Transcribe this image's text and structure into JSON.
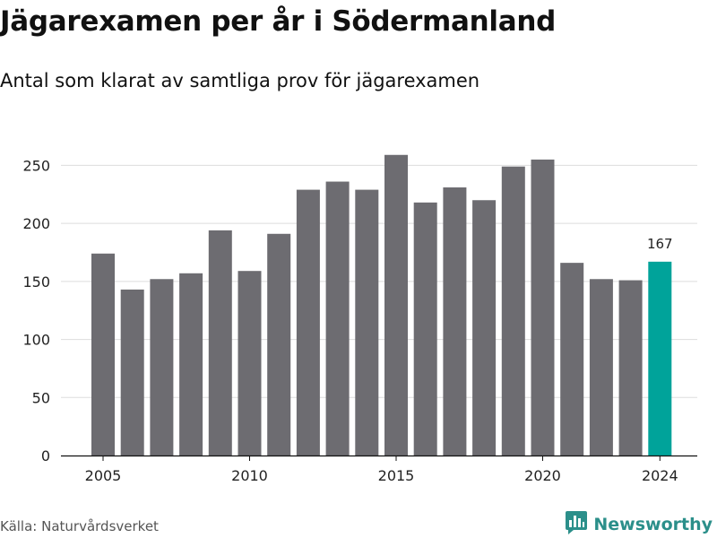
{
  "header": {
    "title": "Jägarexamen per år i Södermanland",
    "subtitle": "Antal som klarat av samtliga prov för jägarexamen"
  },
  "footer": {
    "source": "Källa: Naturvårdsverket",
    "brand": "Newsworthy",
    "brand_icon": "bar-chart-logo-icon"
  },
  "colors": {
    "bar": "#6d6c71",
    "highlight": "#00a39a",
    "grid": "#dddddd",
    "brand": "#2b8f8a"
  },
  "chart_data": {
    "type": "bar",
    "title": "Jägarexamen per år i Södermanland",
    "subtitle": "Antal som klarat av samtliga prov för jägarexamen",
    "x": [
      2005,
      2006,
      2007,
      2008,
      2009,
      2010,
      2011,
      2012,
      2013,
      2014,
      2015,
      2016,
      2017,
      2018,
      2019,
      2020,
      2021,
      2022,
      2023,
      2024
    ],
    "values": [
      174,
      143,
      152,
      157,
      194,
      159,
      191,
      229,
      236,
      229,
      259,
      218,
      231,
      220,
      249,
      255,
      166,
      152,
      151,
      167
    ],
    "highlight_index": 19,
    "highlight_label": "167",
    "xticks": [
      2005,
      2010,
      2015,
      2020,
      2024
    ],
    "yticks": [
      0,
      50,
      100,
      150,
      200,
      250
    ],
    "ylim": [
      0,
      265
    ],
    "xlabel": "",
    "ylabel": "",
    "grid": true,
    "legend": false
  }
}
